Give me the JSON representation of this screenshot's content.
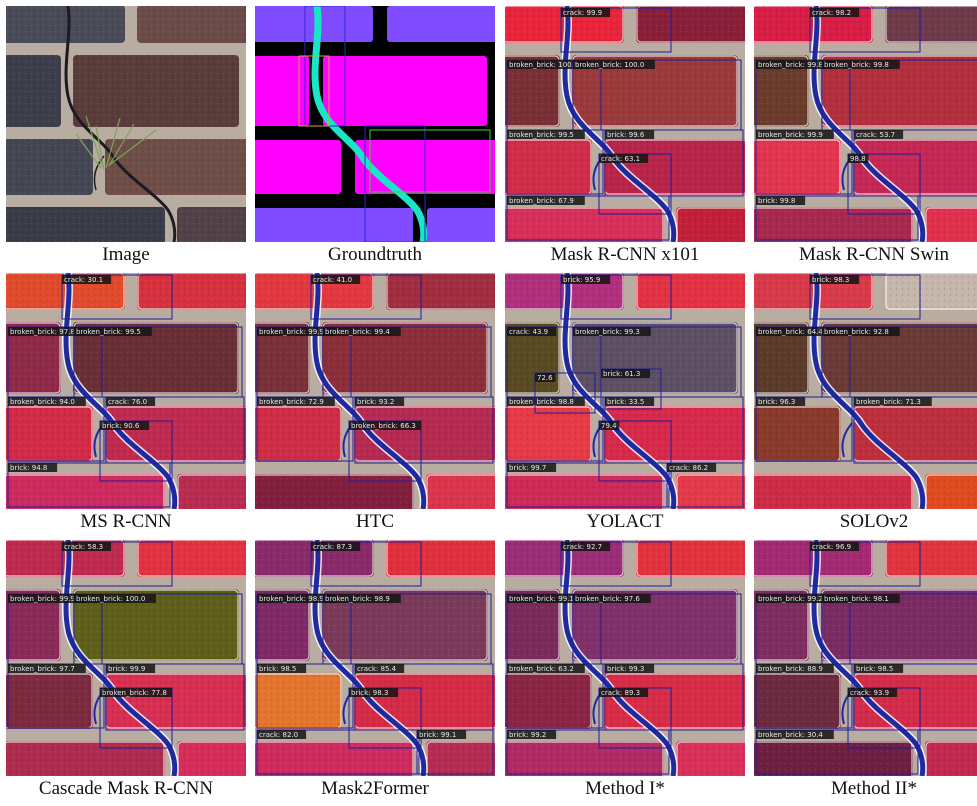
{
  "panels": [
    {
      "caption": "Image",
      "mode": "photo",
      "labels": []
    },
    {
      "caption": "Groundtruth",
      "mode": "gt",
      "labels": []
    },
    {
      "caption": "Mask R-CNN x101",
      "mode": "pred",
      "labels": [
        {
          "t": "crack: 99.9"
        },
        {
          "t": "broken_brick: 100.0"
        },
        {
          "t": "broken_brick: 100.0"
        },
        {
          "t": "broken_brick: 99.5"
        },
        {
          "t": "brick: 99.6"
        },
        {
          "t": "crack: 63.1"
        },
        {
          "t": "broken_brick: 67.9"
        }
      ]
    },
    {
      "caption": "Mask R-CNN Swin",
      "mode": "pred",
      "labels": [
        {
          "t": "crack: 98.2"
        },
        {
          "t": "broken_brick: 99.8"
        },
        {
          "t": "broken_brick: 99.8"
        },
        {
          "t": "broken_brick: 99.9"
        },
        {
          "t": "crack: 53.7"
        },
        {
          "t": "98.8"
        },
        {
          "t": "brick: 99.8"
        }
      ]
    },
    {
      "caption": "MS R-CNN",
      "mode": "pred",
      "labels": [
        {
          "t": "crack: 30.1"
        },
        {
          "t": "broken_brick: 97.8"
        },
        {
          "t": "broken_brick: 99.5"
        },
        {
          "t": "broken_brick: 94.0"
        },
        {
          "t": "crack: 76.0"
        },
        {
          "t": "brick: 90.6"
        },
        {
          "t": "brick: 94.8"
        }
      ]
    },
    {
      "caption": "HTC",
      "mode": "pred",
      "labels": [
        {
          "t": "crack: 41.0"
        },
        {
          "t": "broken_brick: 99.9"
        },
        {
          "t": "broken_brick: 99.4"
        },
        {
          "t": "broken_brick: 72.9"
        },
        {
          "t": "brick: 93.2"
        },
        {
          "t": "broken_brick: 66.3"
        }
      ]
    },
    {
      "caption": "YOLACT",
      "mode": "pred",
      "labels": [
        {
          "t": "brick: 95.9"
        },
        {
          "t": "crack: 43.9"
        },
        {
          "t": "broken_brick: 99.3"
        },
        {
          "t": "broken_brick: 98.8"
        },
        {
          "t": "brick: 33.5"
        },
        {
          "t": "79.4"
        },
        {
          "t": "brick: 99.7"
        },
        {
          "t": "crack: 86.2"
        },
        {
          "t": "brick: 61.3"
        },
        {
          "t": "72.6"
        }
      ]
    },
    {
      "caption": "SOLOv2",
      "mode": "pred",
      "labels": [
        {
          "t": "brick: 98.3"
        },
        {
          "t": "broken_brick: 64.4"
        },
        {
          "t": "broken_brick: 92.8"
        },
        {
          "t": "brick: 96.3"
        },
        {
          "t": "broken_brick: 71.3"
        }
      ]
    },
    {
      "caption": "Cascade Mask R-CNN",
      "mode": "pred",
      "labels": [
        {
          "t": "crack: 58.3"
        },
        {
          "t": "broken_brick: 99.9"
        },
        {
          "t": "broken_brick: 100.0"
        },
        {
          "t": "broken_brick: 97.7"
        },
        {
          "t": "brick: 99.9"
        },
        {
          "t": "broken_brick: 77.8"
        }
      ]
    },
    {
      "caption": "Mask2Former",
      "mode": "pred",
      "labels": [
        {
          "t": "crack: 87.3"
        },
        {
          "t": "broken_brick: 98.9"
        },
        {
          "t": "broken_brick: 98.9"
        },
        {
          "t": "brick: 98.5"
        },
        {
          "t": "crack: 85.4"
        },
        {
          "t": "brick: 98.3"
        },
        {
          "t": "crack: 82.0"
        },
        {
          "t": "brick: 99.1"
        }
      ]
    },
    {
      "caption": "Method I*",
      "mode": "pred",
      "labels": [
        {
          "t": "crack: 92.7"
        },
        {
          "t": "broken_brick: 99.1"
        },
        {
          "t": "broken_brick: 97.6"
        },
        {
          "t": "broken_brick: 63.2"
        },
        {
          "t": "brick: 99.3"
        },
        {
          "t": "crack: 89.3"
        },
        {
          "t": "brick: 99.2"
        }
      ]
    },
    {
      "caption": "Method II*",
      "mode": "pred",
      "labels": [
        {
          "t": "crack: 96.9"
        },
        {
          "t": "broken_brick: 99.2"
        },
        {
          "t": "broken_brick: 98.1"
        },
        {
          "t": "broken_brick: 88.9"
        },
        {
          "t": "brick: 98.5"
        },
        {
          "t": "crack: 93.9"
        },
        {
          "t": "broken_brick: 30.4"
        }
      ]
    }
  ],
  "colors": {
    "photoBricks": [
      "#4a4b58",
      "#6b4a48",
      "#3d3e4c",
      "#5a3c3a",
      "#454654",
      "#6e4e46",
      "#3a3b49",
      "#524248"
    ],
    "mortar": "#b9aca0",
    "crack": "#1c1a22",
    "gtBrick": "#7f4cff",
    "gtBroken": "#ff00ff",
    "gtCrack": "#19e6c8",
    "predPalettes": [
      [
        "#e8253a",
        "#8a1f3a",
        "#7a2f35",
        "#9a3a3c",
        "#cf2e4a",
        "#b8244a",
        "#d6305a",
        "#c21f3b"
      ],
      [
        "#d81e45",
        "#6f3a4a",
        "#6b3c2c",
        "#b2303e",
        "#e23550",
        "#c52855",
        "#a8294f",
        "#e0304c"
      ],
      [
        "#e24a2c",
        "#d7303e",
        "#8f2a4a",
        "#6a2f36",
        "#d32b45",
        "#c02a4f",
        "#cd2a5f",
        "#b92b50"
      ],
      [
        "#e2383f",
        "#a02d40",
        "#7a3039",
        "#8b2e3a",
        "#cf2d46",
        "#b52a51",
        "#821f3f",
        "#d9364b"
      ],
      [
        "#b0307e",
        "#e33244",
        "#5a4a21",
        "#5d4f64",
        "#e63a46",
        "#d7294c",
        "#cf2a57",
        "#e23a4a"
      ],
      [
        "#d93a4a",
        "#c7b6ab",
        "#5d3b2b",
        "#6a3a36",
        "#8a3a2a",
        "#bd2f3d",
        "#ce2b47",
        "#e04a20"
      ],
      [
        "#c02a4e",
        "#e33242",
        "#8a2a58",
        "#5f5f1a",
        "#7c2a40",
        "#d72f52",
        "#ad2c4e",
        "#d52c5a"
      ],
      [
        "#8a2a6b",
        "#e0303e",
        "#7f2a66",
        "#7a3a5a",
        "#e3752e",
        "#d42b46",
        "#cd2b5f",
        "#b42c52"
      ],
      [
        "#9a2d77",
        "#e3323f",
        "#7c2a5b",
        "#80306a",
        "#8a2545",
        "#d72c47",
        "#b12a62",
        "#d8305a"
      ],
      [
        "#a32a72",
        "#e0343e",
        "#7f2d60",
        "#7a2b63",
        "#6c2a3f",
        "#d32b4a",
        "#6e1f40",
        "#c3294f"
      ]
    ]
  }
}
